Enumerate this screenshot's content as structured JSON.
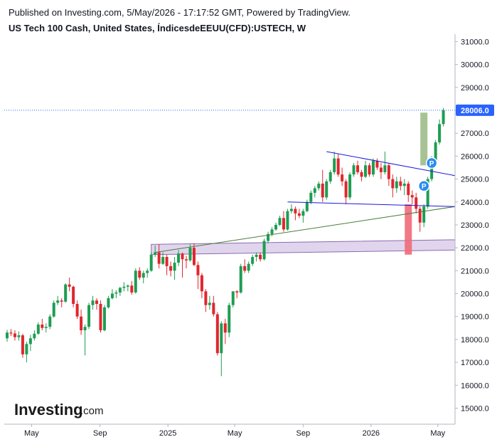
{
  "header": {
    "published": "Published on Investing.com, 5/May/2026 - 17:17:52 GMT, Powered by TradingView.",
    "title": "US Tech 100 Cash, United States, ÍndicesdeEEUU(CFD):USTECH, W"
  },
  "logo": {
    "main": "Investing",
    "sub": ".com"
  },
  "chart_data": {
    "type": "candlestick",
    "title": "US Tech 100 Cash, United States, ÍndicesdeEEUU(CFD):USTECH, W",
    "timeframe": "W",
    "y_ticks": [
      15000,
      16000,
      17000,
      18000,
      19000,
      20000,
      21000,
      22000,
      23000,
      24000,
      25000,
      26000,
      27000,
      28000,
      29000,
      30000,
      31000
    ],
    "y_tick_labels": [
      "15000.0",
      "16000.0",
      "17000.0",
      "18000.0",
      "19000.0",
      "20000.0",
      "21000.0",
      "22000.0",
      "23000.0",
      "24000.0",
      "25000.0",
      "26000.0",
      "27000.0",
      "28000.0",
      "29000.0",
      "30000.0",
      "31000.0"
    ],
    "ylim": [
      14300,
      31200
    ],
    "x_ticks": [
      {
        "label": "May",
        "date": "2024-05-01"
      },
      {
        "label": "Sep",
        "date": "2024-09-01"
      },
      {
        "label": "2025",
        "date": "2025-01-01"
      },
      {
        "label": "May",
        "date": "2025-05-01"
      },
      {
        "label": "Sep",
        "date": "2025-09-01"
      },
      {
        "label": "2026",
        "date": "2026-01-01"
      },
      {
        "label": "May",
        "date": "2026-05-01"
      }
    ],
    "xlim": [
      "2024-03-18",
      "2026-06-01"
    ],
    "last_price": 28006.0,
    "last_price_label": "28006.0",
    "colors": {
      "up": "#26a69a",
      "up_body": "#1e9d52",
      "down": "#ef5350",
      "down_body": "#e0262e",
      "price_line": "#2962ff",
      "badge": "#2962ff"
    },
    "candles": [
      {
        "date": "2024-03-18",
        "o": 18050,
        "h": 18420,
        "l": 17900,
        "c": 18300
      },
      {
        "date": "2024-03-25",
        "o": 18300,
        "h": 18450,
        "l": 18150,
        "c": 18260
      },
      {
        "date": "2024-04-01",
        "o": 18260,
        "h": 18400,
        "l": 17950,
        "c": 18100
      },
      {
        "date": "2024-04-08",
        "o": 18100,
        "h": 18350,
        "l": 17950,
        "c": 18180
      },
      {
        "date": "2024-04-15",
        "o": 18180,
        "h": 18250,
        "l": 17200,
        "c": 17350
      },
      {
        "date": "2024-04-22",
        "o": 17350,
        "h": 17900,
        "l": 17000,
        "c": 17800
      },
      {
        "date": "2024-04-29",
        "o": 17800,
        "h": 18200,
        "l": 17500,
        "c": 18050
      },
      {
        "date": "2024-05-06",
        "o": 18050,
        "h": 18400,
        "l": 17950,
        "c": 18250
      },
      {
        "date": "2024-05-13",
        "o": 18250,
        "h": 18750,
        "l": 18200,
        "c": 18650
      },
      {
        "date": "2024-05-20",
        "o": 18650,
        "h": 18900,
        "l": 18400,
        "c": 18500
      },
      {
        "date": "2024-05-27",
        "o": 18500,
        "h": 18700,
        "l": 18300,
        "c": 18550
      },
      {
        "date": "2024-06-03",
        "o": 18550,
        "h": 19100,
        "l": 18450,
        "c": 19000
      },
      {
        "date": "2024-06-10",
        "o": 19000,
        "h": 19700,
        "l": 18950,
        "c": 19600
      },
      {
        "date": "2024-06-17",
        "o": 19600,
        "h": 19900,
        "l": 19500,
        "c": 19700
      },
      {
        "date": "2024-06-24",
        "o": 19700,
        "h": 19800,
        "l": 19400,
        "c": 19650
      },
      {
        "date": "2024-07-01",
        "o": 19650,
        "h": 20450,
        "l": 19600,
        "c": 20400
      },
      {
        "date": "2024-07-08",
        "o": 20400,
        "h": 20700,
        "l": 20100,
        "c": 20300
      },
      {
        "date": "2024-07-15",
        "o": 20300,
        "h": 20350,
        "l": 19400,
        "c": 19550
      },
      {
        "date": "2024-07-22",
        "o": 19550,
        "h": 19700,
        "l": 18900,
        "c": 19000
      },
      {
        "date": "2024-07-29",
        "o": 19000,
        "h": 19300,
        "l": 18200,
        "c": 18400
      },
      {
        "date": "2024-08-05",
        "o": 18400,
        "h": 18650,
        "l": 17300,
        "c": 18550
      },
      {
        "date": "2024-08-12",
        "o": 18550,
        "h": 19600,
        "l": 18450,
        "c": 19500
      },
      {
        "date": "2024-08-19",
        "o": 19500,
        "h": 19900,
        "l": 19300,
        "c": 19700
      },
      {
        "date": "2024-08-26",
        "o": 19700,
        "h": 19800,
        "l": 19300,
        "c": 19550
      },
      {
        "date": "2024-09-02",
        "o": 19550,
        "h": 19700,
        "l": 18300,
        "c": 18400
      },
      {
        "date": "2024-09-09",
        "o": 18400,
        "h": 19500,
        "l": 18350,
        "c": 19400
      },
      {
        "date": "2024-09-16",
        "o": 19400,
        "h": 19900,
        "l": 19350,
        "c": 19800
      },
      {
        "date": "2024-09-23",
        "o": 19800,
        "h": 20200,
        "l": 19750,
        "c": 20000
      },
      {
        "date": "2024-09-30",
        "o": 20000,
        "h": 20150,
        "l": 19800,
        "c": 20050
      },
      {
        "date": "2024-10-07",
        "o": 20050,
        "h": 20300,
        "l": 19900,
        "c": 20250
      },
      {
        "date": "2024-10-14",
        "o": 20250,
        "h": 20500,
        "l": 20100,
        "c": 20300
      },
      {
        "date": "2024-10-21",
        "o": 20300,
        "h": 20400,
        "l": 20100,
        "c": 20350
      },
      {
        "date": "2024-10-28",
        "o": 20350,
        "h": 20550,
        "l": 19950,
        "c": 20050
      },
      {
        "date": "2024-11-04",
        "o": 20050,
        "h": 21100,
        "l": 20000,
        "c": 21000
      },
      {
        "date": "2024-11-11",
        "o": 21000,
        "h": 21150,
        "l": 20600,
        "c": 20700
      },
      {
        "date": "2024-11-18",
        "o": 20700,
        "h": 21000,
        "l": 20450,
        "c": 20900
      },
      {
        "date": "2024-11-25",
        "o": 20900,
        "h": 21100,
        "l": 20700,
        "c": 21000
      },
      {
        "date": "2024-12-02",
        "o": 21000,
        "h": 21800,
        "l": 20950,
        "c": 21700
      },
      {
        "date": "2024-12-09",
        "o": 21700,
        "h": 22100,
        "l": 21600,
        "c": 21800
      },
      {
        "date": "2024-12-16",
        "o": 21800,
        "h": 22150,
        "l": 21100,
        "c": 21300
      },
      {
        "date": "2024-12-23",
        "o": 21300,
        "h": 21800,
        "l": 21250,
        "c": 21600
      },
      {
        "date": "2024-12-30",
        "o": 21600,
        "h": 21700,
        "l": 20800,
        "c": 21200
      },
      {
        "date": "2025-01-06",
        "o": 21200,
        "h": 21400,
        "l": 20750,
        "c": 21000
      },
      {
        "date": "2025-01-13",
        "o": 21000,
        "h": 21600,
        "l": 20600,
        "c": 21350
      },
      {
        "date": "2025-01-20",
        "o": 21350,
        "h": 21900,
        "l": 21200,
        "c": 21750
      },
      {
        "date": "2025-01-27",
        "o": 21750,
        "h": 21800,
        "l": 20700,
        "c": 21500
      },
      {
        "date": "2025-02-03",
        "o": 21500,
        "h": 21650,
        "l": 21100,
        "c": 21450
      },
      {
        "date": "2025-02-10",
        "o": 21450,
        "h": 22150,
        "l": 21400,
        "c": 22000
      },
      {
        "date": "2025-02-17",
        "o": 22000,
        "h": 22200,
        "l": 21200,
        "c": 21250
      },
      {
        "date": "2025-02-24",
        "o": 21250,
        "h": 21400,
        "l": 20200,
        "c": 20800
      },
      {
        "date": "2025-03-03",
        "o": 20800,
        "h": 20900,
        "l": 19800,
        "c": 20100
      },
      {
        "date": "2025-03-10",
        "o": 20100,
        "h": 20200,
        "l": 19200,
        "c": 19500
      },
      {
        "date": "2025-03-17",
        "o": 19500,
        "h": 19900,
        "l": 19300,
        "c": 19600
      },
      {
        "date": "2025-03-24",
        "o": 19600,
        "h": 19900,
        "l": 19000,
        "c": 19100
      },
      {
        "date": "2025-03-31",
        "o": 19100,
        "h": 19200,
        "l": 17300,
        "c": 17400
      },
      {
        "date": "2025-04-07",
        "o": 17400,
        "h": 18800,
        "l": 16400,
        "c": 18700
      },
      {
        "date": "2025-04-14",
        "o": 18700,
        "h": 18900,
        "l": 17800,
        "c": 18300
      },
      {
        "date": "2025-04-21",
        "o": 18300,
        "h": 19600,
        "l": 18100,
        "c": 19500
      },
      {
        "date": "2025-04-28",
        "o": 19500,
        "h": 20100,
        "l": 19400,
        "c": 20100
      },
      {
        "date": "2025-05-05",
        "o": 20100,
        "h": 20150,
        "l": 19800,
        "c": 20050
      },
      {
        "date": "2025-05-12",
        "o": 20050,
        "h": 21300,
        "l": 20000,
        "c": 21200
      },
      {
        "date": "2025-05-19",
        "o": 21200,
        "h": 21500,
        "l": 20900,
        "c": 21000
      },
      {
        "date": "2025-05-26",
        "o": 21000,
        "h": 21400,
        "l": 20900,
        "c": 21300
      },
      {
        "date": "2025-06-02",
        "o": 21300,
        "h": 21700,
        "l": 21200,
        "c": 21600
      },
      {
        "date": "2025-06-09",
        "o": 21600,
        "h": 21800,
        "l": 21400,
        "c": 21700
      },
      {
        "date": "2025-06-16",
        "o": 21700,
        "h": 21800,
        "l": 21400,
        "c": 21500
      },
      {
        "date": "2025-06-23",
        "o": 21500,
        "h": 22400,
        "l": 21450,
        "c": 22300
      },
      {
        "date": "2025-06-30",
        "o": 22300,
        "h": 22700,
        "l": 22200,
        "c": 22600
      },
      {
        "date": "2025-07-07",
        "o": 22600,
        "h": 22900,
        "l": 22500,
        "c": 22800
      },
      {
        "date": "2025-07-14",
        "o": 22800,
        "h": 23100,
        "l": 22750,
        "c": 23000
      },
      {
        "date": "2025-07-21",
        "o": 23000,
        "h": 23400,
        "l": 22950,
        "c": 23300
      },
      {
        "date": "2025-07-28",
        "o": 23300,
        "h": 23600,
        "l": 22700,
        "c": 22800
      },
      {
        "date": "2025-08-04",
        "o": 22800,
        "h": 23700,
        "l": 22750,
        "c": 23600
      },
      {
        "date": "2025-08-11",
        "o": 23600,
        "h": 23900,
        "l": 23500,
        "c": 23700
      },
      {
        "date": "2025-08-18",
        "o": 23700,
        "h": 23800,
        "l": 23200,
        "c": 23500
      },
      {
        "date": "2025-08-25",
        "o": 23500,
        "h": 23700,
        "l": 23300,
        "c": 23400
      },
      {
        "date": "2025-09-01",
        "o": 23400,
        "h": 23700,
        "l": 23100,
        "c": 23600
      },
      {
        "date": "2025-09-08",
        "o": 23600,
        "h": 24100,
        "l": 23550,
        "c": 24000
      },
      {
        "date": "2025-09-15",
        "o": 24000,
        "h": 24500,
        "l": 23900,
        "c": 24400
      },
      {
        "date": "2025-09-22",
        "o": 24400,
        "h": 24700,
        "l": 24200,
        "c": 24600
      },
      {
        "date": "2025-09-29",
        "o": 24600,
        "h": 24900,
        "l": 24500,
        "c": 24800
      },
      {
        "date": "2025-10-06",
        "o": 24800,
        "h": 25400,
        "l": 24000,
        "c": 24200
      },
      {
        "date": "2025-10-13",
        "o": 24200,
        "h": 25000,
        "l": 24100,
        "c": 24900
      },
      {
        "date": "2025-10-20",
        "o": 24900,
        "h": 25400,
        "l": 24800,
        "c": 25300
      },
      {
        "date": "2025-10-27",
        "o": 25300,
        "h": 26200,
        "l": 25200,
        "c": 25900
      },
      {
        "date": "2025-11-03",
        "o": 25900,
        "h": 26100,
        "l": 25100,
        "c": 25200
      },
      {
        "date": "2025-11-10",
        "o": 25200,
        "h": 25500,
        "l": 24700,
        "c": 24900
      },
      {
        "date": "2025-11-17",
        "o": 24900,
        "h": 25000,
        "l": 23900,
        "c": 24200
      },
      {
        "date": "2025-11-24",
        "o": 24200,
        "h": 25300,
        "l": 24100,
        "c": 25200
      },
      {
        "date": "2025-12-01",
        "o": 25200,
        "h": 25700,
        "l": 25100,
        "c": 25600
      },
      {
        "date": "2025-12-08",
        "o": 25600,
        "h": 25800,
        "l": 25200,
        "c": 25300
      },
      {
        "date": "2025-12-15",
        "o": 25300,
        "h": 25400,
        "l": 24900,
        "c": 25100
      },
      {
        "date": "2025-12-22",
        "o": 25100,
        "h": 25800,
        "l": 25050,
        "c": 25600
      },
      {
        "date": "2025-12-29",
        "o": 25600,
        "h": 25700,
        "l": 25100,
        "c": 25200
      },
      {
        "date": "2026-01-05",
        "o": 25200,
        "h": 25900,
        "l": 25100,
        "c": 25800
      },
      {
        "date": "2026-01-12",
        "o": 25800,
        "h": 25900,
        "l": 25400,
        "c": 25500
      },
      {
        "date": "2026-01-19",
        "o": 25500,
        "h": 25700,
        "l": 25000,
        "c": 25300
      },
      {
        "date": "2026-01-26",
        "o": 25300,
        "h": 26200,
        "l": 25200,
        "c": 25600
      },
      {
        "date": "2026-02-02",
        "o": 25600,
        "h": 25700,
        "l": 24700,
        "c": 25000
      },
      {
        "date": "2026-02-09",
        "o": 25000,
        "h": 25200,
        "l": 24200,
        "c": 24600
      },
      {
        "date": "2026-02-16",
        "o": 24600,
        "h": 25100,
        "l": 24400,
        "c": 24900
      },
      {
        "date": "2026-02-23",
        "o": 24900,
        "h": 25100,
        "l": 24500,
        "c": 24700
      },
      {
        "date": "2026-03-02",
        "o": 24700,
        "h": 25000,
        "l": 24300,
        "c": 24800
      },
      {
        "date": "2026-03-09",
        "o": 24800,
        "h": 24900,
        "l": 24000,
        "c": 24300
      },
      {
        "date": "2026-03-16",
        "o": 24300,
        "h": 24500,
        "l": 23900,
        "c": 24200
      },
      {
        "date": "2026-03-23",
        "o": 24200,
        "h": 24400,
        "l": 23500,
        "c": 23700
      },
      {
        "date": "2026-03-30",
        "o": 23700,
        "h": 23800,
        "l": 22700,
        "c": 23100
      },
      {
        "date": "2026-04-06",
        "o": 23100,
        "h": 23900,
        "l": 22900,
        "c": 23800
      },
      {
        "date": "2026-04-13",
        "o": 23800,
        "h": 25100,
        "l": 23700,
        "c": 25000
      },
      {
        "date": "2026-04-20",
        "o": 25000,
        "h": 26000,
        "l": 24900,
        "c": 25800
      },
      {
        "date": "2026-04-27",
        "o": 25800,
        "h": 26700,
        "l": 25700,
        "c": 26600
      },
      {
        "date": "2026-05-04",
        "o": 26600,
        "h": 27600,
        "l": 26500,
        "c": 27400
      },
      {
        "date": "2026-05-11",
        "o": 27400,
        "h": 28100,
        "l": 27300,
        "c": 28006
      }
    ],
    "annotations": {
      "resistance_line": {
        "from": {
          "date": "2025-10-13",
          "y": 26200
        },
        "to": {
          "date": "2026-06-01",
          "y": 25150
        },
        "color": "#1a1adb"
      },
      "support_line": {
        "from": {
          "date": "2025-08-04",
          "y": 24000
        },
        "to": {
          "date": "2026-06-01",
          "y": 23800
        },
        "color": "#1a1adb"
      },
      "trend_line": {
        "from": {
          "date": "2024-12-09",
          "y": 21800
        },
        "to": {
          "date": "2026-06-01",
          "y": 23800
        },
        "color": "#4a7d3a"
      },
      "support_zone": {
        "from_date": "2024-12-02",
        "to_date": "2026-06-01",
        "top_start": 22150,
        "top_end": 22350,
        "bottom_start": 21700,
        "bottom_end": 21900,
        "fill": "#d8cbe8",
        "stroke": "#8c6bb1"
      },
      "gain_box": {
        "date": "2026-04-06",
        "top": 27900,
        "bottom": 25600,
        "fill": "#9dbd8a"
      },
      "loss_box": {
        "date": "2026-03-09",
        "top": 23900,
        "bottom": 21700,
        "fill": "#ef6a78"
      },
      "marker_upper": {
        "date": "2026-04-20",
        "y": 25700,
        "label": "P"
      },
      "marker_lower": {
        "date": "2026-04-06",
        "y": 24700,
        "label": "P"
      }
    }
  }
}
